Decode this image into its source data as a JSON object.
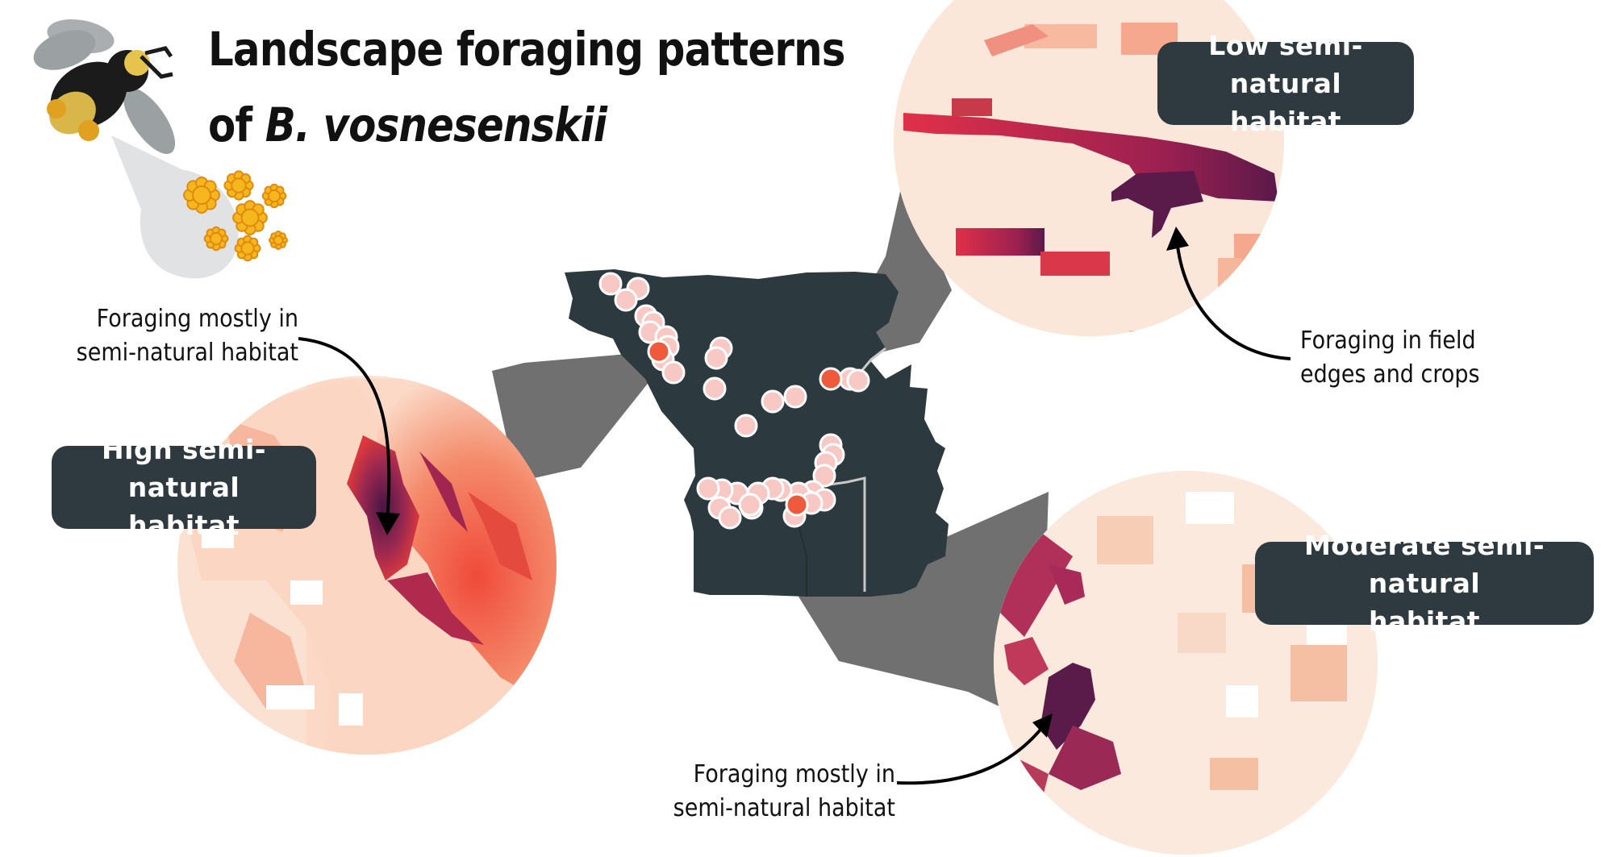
{
  "title": {
    "line1": "Landscape foraging patterns",
    "line2_prefix": "of ",
    "species": "B. vosnesenskii"
  },
  "insets": {
    "low": {
      "label": "Low semi-natural\nhabitat",
      "annotation": "Foraging in field\nedges and crops"
    },
    "high": {
      "label": "High semi-natural\nhabitat",
      "annotation": "Foraging mostly in\nsemi-natural habitat"
    },
    "moderate": {
      "label": "Moderate semi-natural\nhabitat",
      "annotation": "Foraging mostly in\nsemi-natural habitat"
    }
  },
  "icons": {
    "bee": "bumblebee-icon",
    "pollen": "pollen-load-icon"
  },
  "colors": {
    "map_fill": "#2c3a40",
    "badge_fill": "#2e3a40",
    "site_point": "#f8c8c4",
    "focal_site_point": "#ef5a3c",
    "connector": "#707070",
    "habitat_low": "#fbe7da",
    "habitat_high": "#591a4a",
    "pollen": "#f5b61e"
  }
}
